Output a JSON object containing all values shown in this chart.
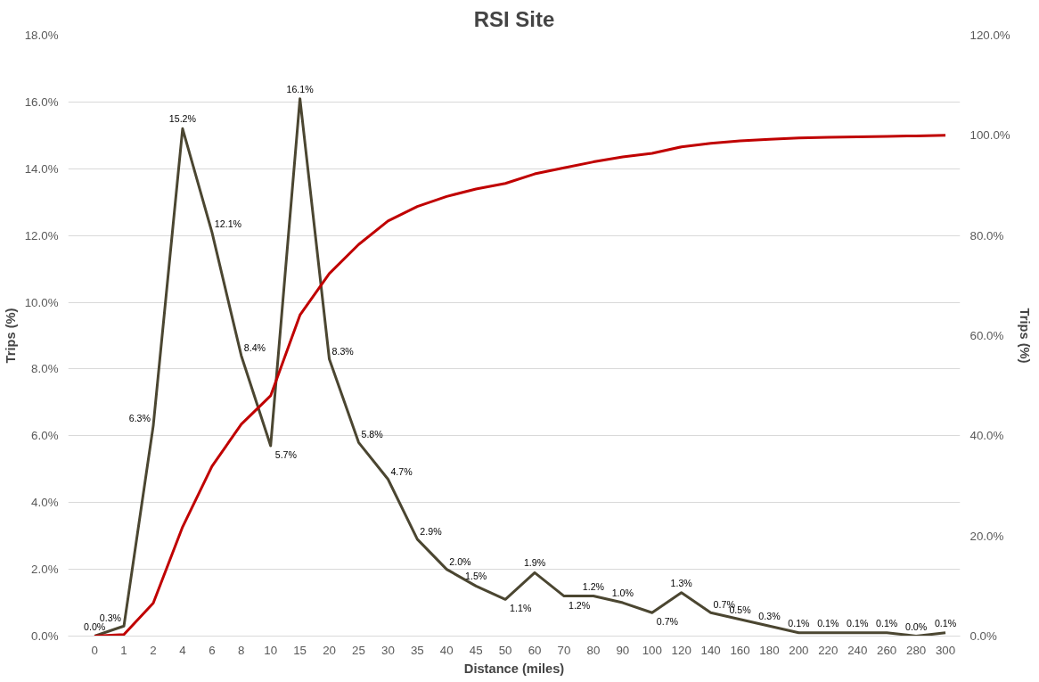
{
  "chart_data": {
    "type": "line",
    "title": "RSI Site",
    "xlabel": "Distance (miles)",
    "ylabel": "Trips (%)",
    "y2label": "Trips (%)",
    "categories": [
      "0",
      "1",
      "2",
      "4",
      "6",
      "8",
      "10",
      "15",
      "20",
      "25",
      "30",
      "35",
      "40",
      "45",
      "50",
      "60",
      "70",
      "80",
      "90",
      "100",
      "120",
      "140",
      "160",
      "180",
      "200",
      "220",
      "240",
      "260",
      "280",
      "300"
    ],
    "series": [
      {
        "color": "#4b4631",
        "values": [
          0.0,
          0.3,
          6.3,
          15.2,
          12.1,
          8.4,
          5.7,
          16.1,
          8.3,
          5.8,
          4.7,
          2.9,
          2.0,
          1.5,
          1.1,
          1.9,
          1.2,
          1.2,
          1.0,
          0.7,
          1.3,
          0.7,
          0.5,
          0.3,
          0.1,
          0.1,
          0.1,
          0.1,
          0.0,
          0.1
        ],
        "value_labels": [
          "0.0%",
          "0.3%",
          "6.3%",
          "15.2%",
          "12.1%",
          "8.4%",
          "5.7%",
          "16.1%",
          "8.3%",
          "5.8%",
          "4.7%",
          "2.9%",
          "2.0%",
          "1.5%",
          "1.1%",
          "1.9%",
          "1.2%",
          "1.2%",
          "1.0%",
          "0.7%",
          "1.3%",
          "0.7%",
          "0.5%",
          "0.3%",
          "0.1%",
          "0.1%",
          "0.1%",
          "0.1%",
          "0.0%",
          "0.1%"
        ]
      },
      {
        "color": "#c00000",
        "axis": "y2",
        "values": [
          0,
          0.3,
          6.6,
          21.8,
          33.9,
          42.3,
          48.0,
          64.1,
          72.4,
          78.2,
          82.9,
          85.8,
          87.8,
          89.3,
          90.4,
          92.3,
          93.5,
          94.7,
          95.7,
          96.4,
          97.7,
          98.4,
          98.9,
          99.2,
          99.5,
          99.6,
          99.7,
          99.8,
          99.9,
          100
        ]
      }
    ],
    "ylim": [
      0,
      18
    ],
    "yticks": [
      {
        "value": 0,
        "label": "0.0%"
      },
      {
        "value": 2,
        "label": "2.0%"
      },
      {
        "value": 4,
        "label": "4.0%"
      },
      {
        "value": 6,
        "label": "6.0%"
      },
      {
        "value": 8,
        "label": "8.0%"
      },
      {
        "value": 10,
        "label": "10.0%"
      },
      {
        "value": 12,
        "label": "12.0%"
      },
      {
        "value": 14,
        "label": "14.0%"
      },
      {
        "value": 16,
        "label": "16.0%"
      },
      {
        "value": 18,
        "label": "18.0%"
      }
    ],
    "y2lim": [
      0,
      120
    ],
    "y2ticks": [
      {
        "value": 0,
        "label": "0.0%"
      },
      {
        "value": 20,
        "label": "20.0%"
      },
      {
        "value": 40,
        "label": "40.0%"
      },
      {
        "value": 60,
        "label": "60.0%"
      },
      {
        "value": 80,
        "label": "80.0%"
      },
      {
        "value": 100,
        "label": "100.0%"
      },
      {
        "value": 120,
        "label": "120.0%"
      }
    ],
    "grid": "y",
    "marker": "none",
    "line_style": "solid"
  }
}
